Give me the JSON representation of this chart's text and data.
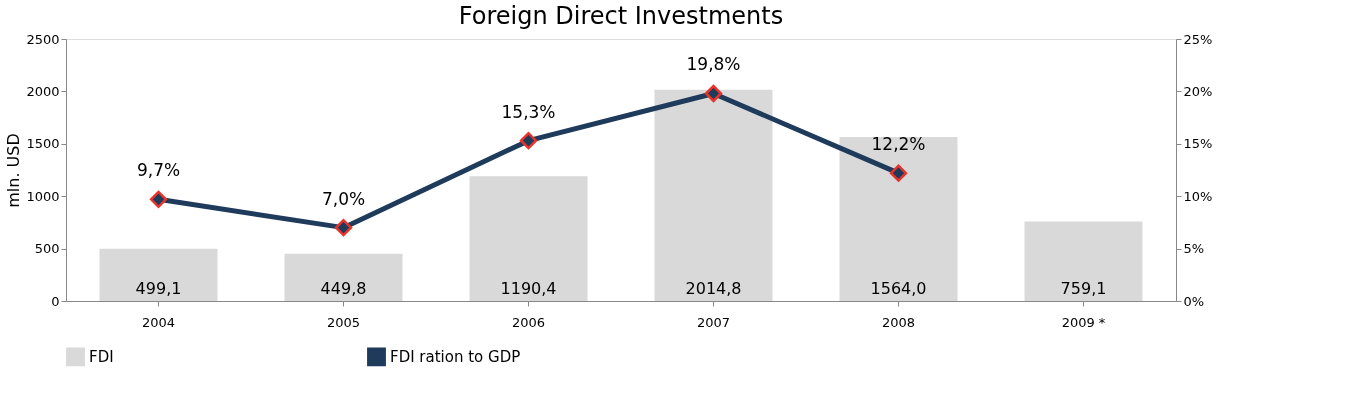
{
  "chart_data": {
    "type": "bar",
    "title": "Foreign Direct Investments",
    "ylabel": "mln. USD",
    "categories": [
      "2004",
      "2005",
      "2006",
      "2007",
      "2008",
      "2009 *"
    ],
    "series": [
      {
        "name": "FDI",
        "color": "#d9d9d9",
        "values": [
          499.1,
          449.8,
          1190.4,
          2014.8,
          1564.0,
          759.1
        ],
        "value_labels": [
          "499,1",
          "449,8",
          "1190,4",
          "2014,8",
          "1564,0",
          "759,1"
        ]
      },
      {
        "name": "FDI ration to GDP",
        "type": "line",
        "axis": "y2",
        "color": "#1f3b5c",
        "marker": "diamond",
        "line_style": "solid",
        "values": [
          9.7,
          7.0,
          15.3,
          19.8,
          12.2,
          null
        ],
        "value_labels": [
          "9,7%",
          "7,0%",
          "15,3%",
          "19,8%",
          "12,2%",
          null
        ]
      }
    ],
    "ylim": [
      0,
      2500
    ],
    "yticks": [
      0,
      500,
      1000,
      1500,
      2000,
      2500
    ],
    "y2lim": [
      0,
      25
    ],
    "y2ticks": [
      {
        "value": 0,
        "label": "0%"
      },
      {
        "value": 5,
        "label": "5%"
      },
      {
        "value": 10,
        "label": "10%"
      },
      {
        "value": 15,
        "label": "15%"
      },
      {
        "value": 20,
        "label": "20%"
      },
      {
        "value": 25,
        "label": "25%"
      }
    ],
    "grid": false,
    "legend": "bottom"
  }
}
